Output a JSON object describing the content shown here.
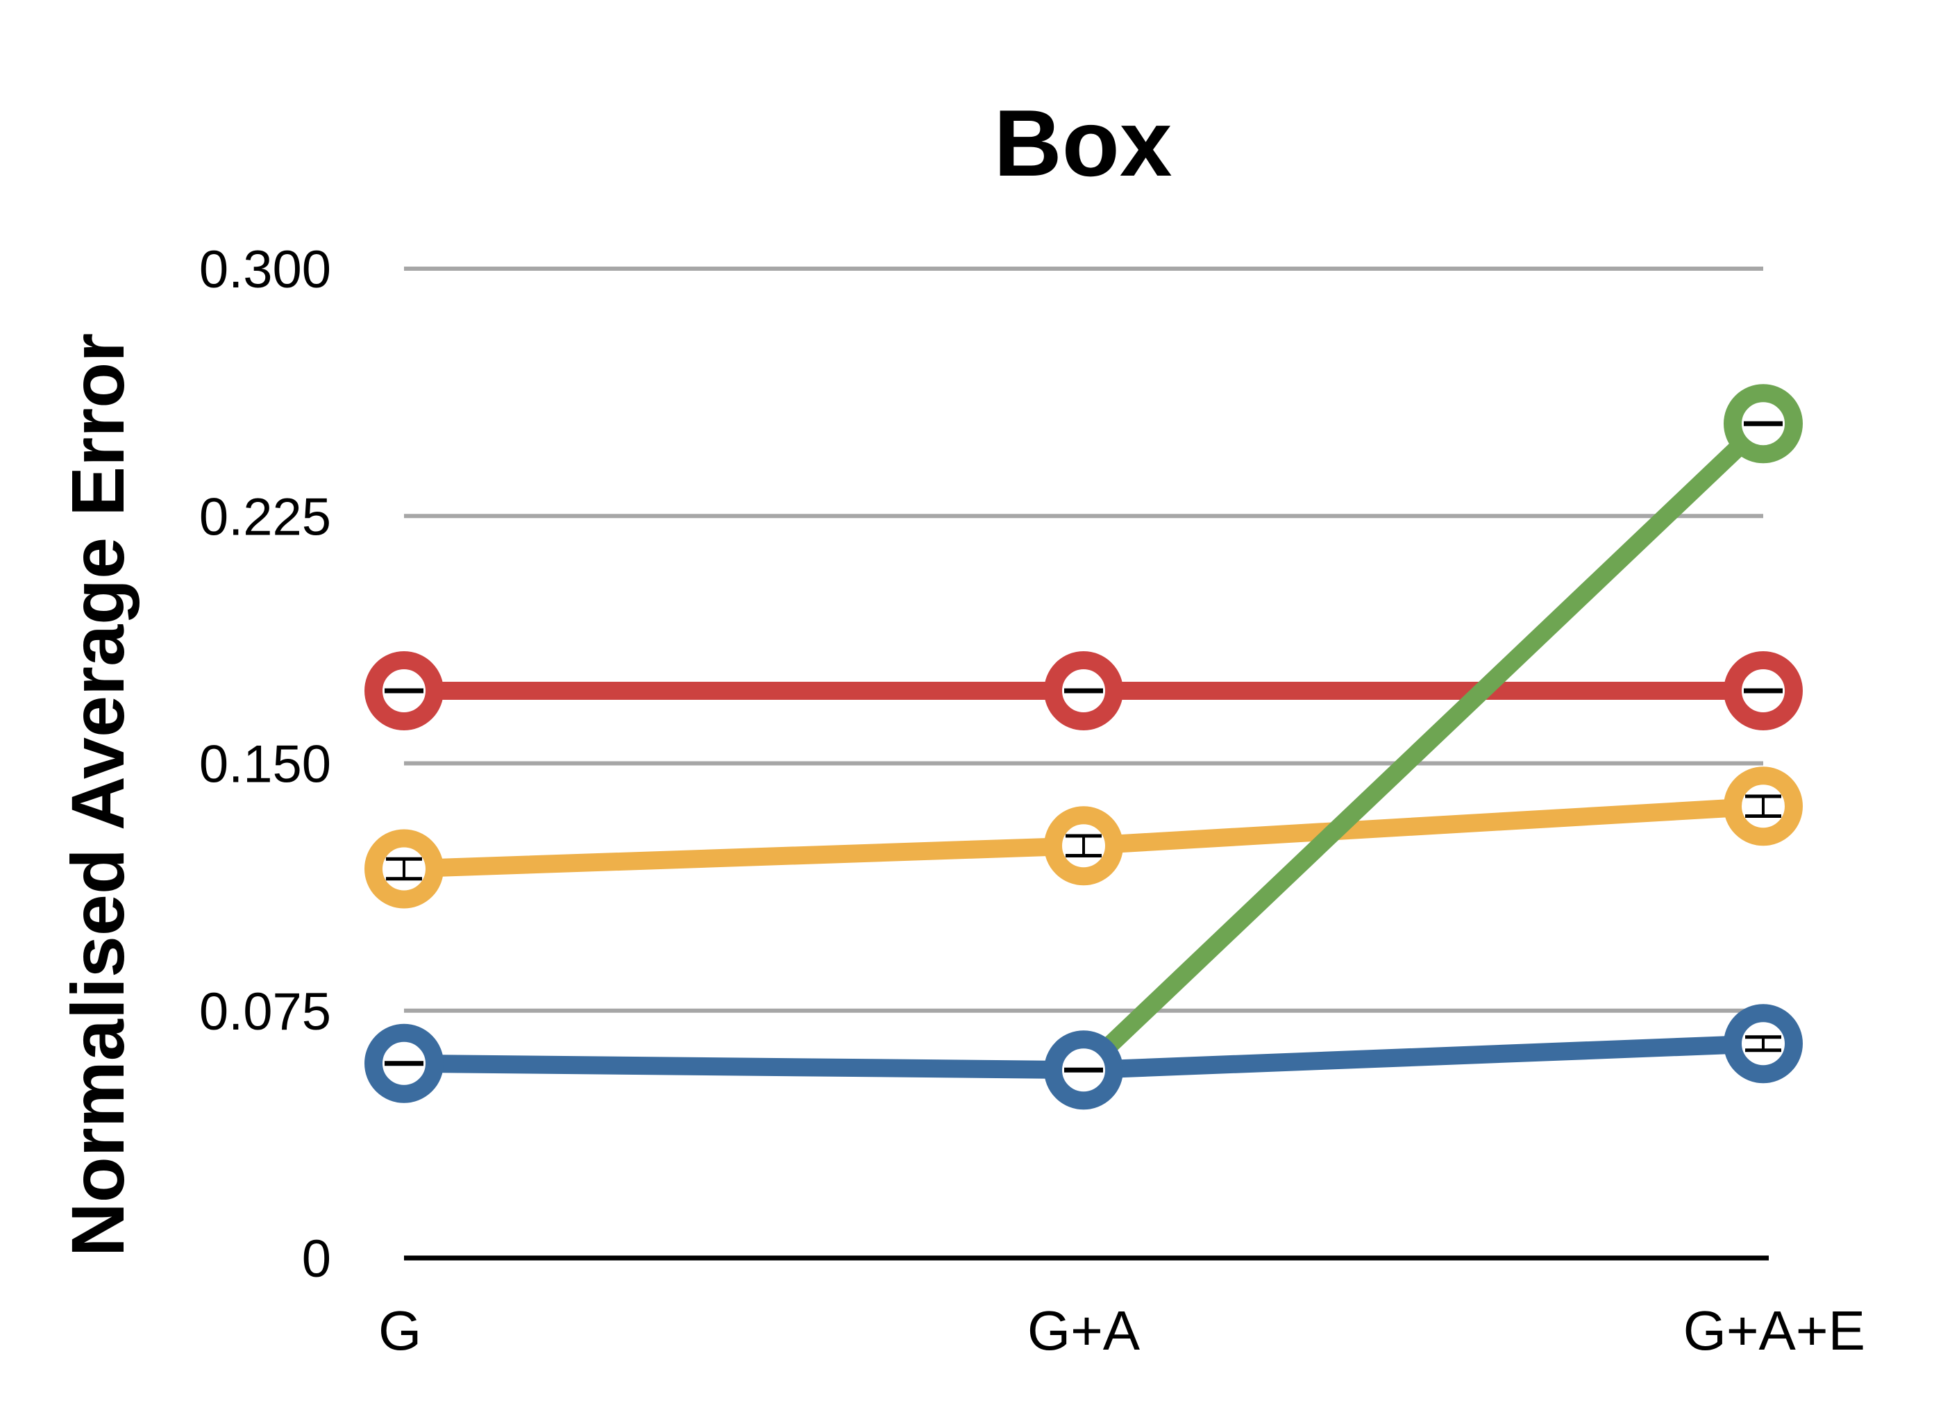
{
  "chart_data": {
    "type": "line",
    "title": "Box",
    "xlabel": "",
    "ylabel": "Normalised Average Error",
    "categories": [
      "G",
      "G+A",
      "G+A+E"
    ],
    "yticks": [
      "0",
      "0.075",
      "0.150",
      "0.225",
      "0.300"
    ],
    "ylim": [
      0,
      0.3
    ],
    "grid": true,
    "legend": "none",
    "series": [
      {
        "color": "#cc4240",
        "values": [
          0.172,
          0.172,
          0.172
        ],
        "errors": [
          0.001,
          0.001,
          0.001
        ]
      },
      {
        "color": "#eeb04a",
        "values": [
          0.118,
          0.125,
          0.137
        ],
        "errors": [
          0.003,
          0.003,
          0.003
        ]
      },
      {
        "color": "#3b6c9f",
        "values": [
          0.059,
          0.057,
          0.065
        ],
        "errors": [
          0.001,
          0.001,
          0.002
        ],
        "markers_at": [
          0,
          1,
          2
        ]
      },
      {
        "color": "#6ea552",
        "values": [
          null,
          0.057,
          0.253
        ],
        "errors": [
          null,
          null,
          0.001
        ],
        "markers_at": [
          2
        ]
      }
    ]
  }
}
